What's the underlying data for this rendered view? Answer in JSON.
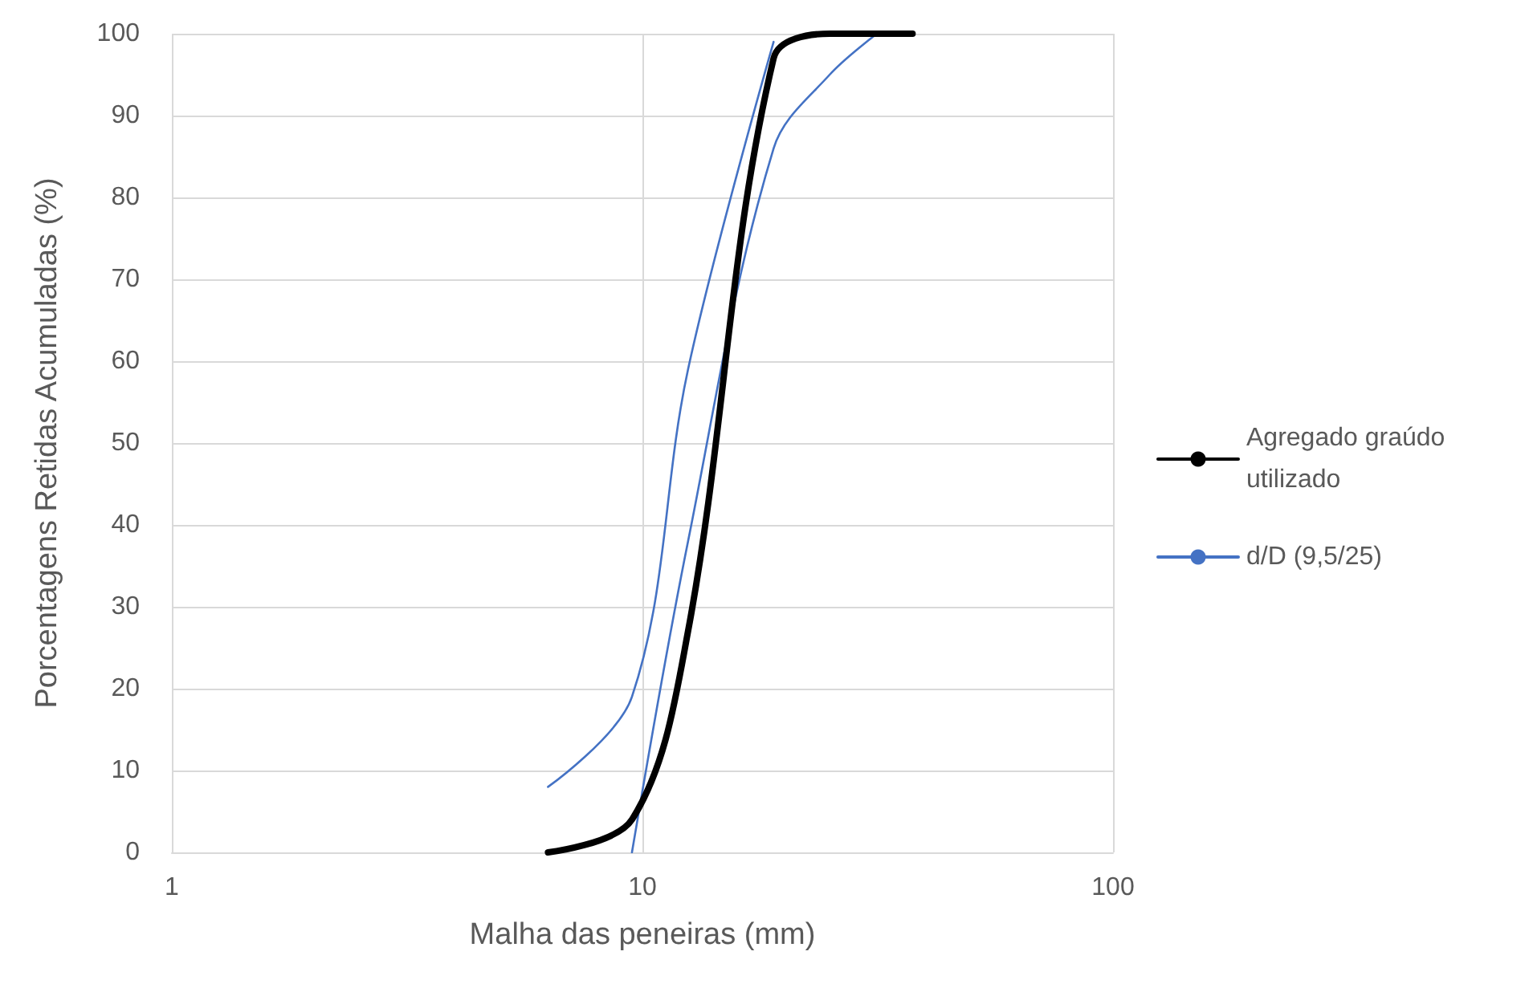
{
  "chart_data": {
    "type": "line",
    "xlabel": "Malha das peneiras (mm)",
    "ylabel": "Porcentagens Retidas Acumuladas (%)",
    "log": "x",
    "xlim": [
      1,
      100
    ],
    "xticks": [
      1,
      10,
      100
    ],
    "ylim": [
      0,
      100
    ],
    "yticks": [
      0,
      10,
      20,
      30,
      40,
      50,
      60,
      70,
      80,
      90,
      100
    ],
    "grid": true,
    "legend": "right",
    "marker": "none",
    "line_style": "solid",
    "series": [
      {
        "name": "Agregado graúdo utilizado",
        "color": "#000000",
        "x": [
          6.3,
          9.5,
          12.5,
          19,
          25,
          37.5
        ],
        "values": [
          0,
          4,
          27,
          97,
          100,
          100
        ]
      },
      {
        "name": "d/D (9,5/25)",
        "color": "#4472c4",
        "x": [
          6.3,
          9.5,
          12.5,
          19
        ],
        "values": [
          8,
          19,
          59,
          99
        ]
      },
      {
        "color": "#4472c4",
        "x": [
          9.5,
          12.5,
          19,
          25,
          31.5
        ],
        "values": [
          0,
          38,
          86,
          95,
          100
        ]
      }
    ]
  }
}
